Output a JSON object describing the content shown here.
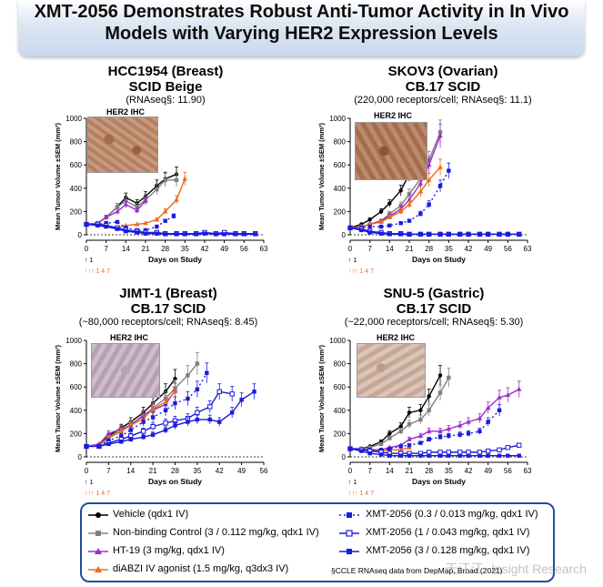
{
  "header": {
    "line1": "XMT-2056 Demonstrates Robust Anti-Tumor Activity in In Vivo",
    "line2": "Models with Varying HER2 Expression Levels"
  },
  "colors": {
    "vehicle": "#000000",
    "nonbinding": "#808080",
    "ht19": "#9b30c8",
    "diabzi": "#ee6a1a",
    "xmt": "#1a1ae0",
    "legend_border": "#1f4e9b"
  },
  "ihc_label": "HER2 IHC",
  "panels": [
    {
      "title": "HCC1954 (Breast)",
      "subtitle": "SCID Beige",
      "detail": "(RNAseq§: 11.90)"
    },
    {
      "title": "SKOV3 (Ovarian)",
      "subtitle": "CB.17 SCID",
      "detail": "(220,000 receptors/cell; RNAseq§: 11.1)"
    },
    {
      "title": "JIMT-1 (Breast)",
      "subtitle": "CB.17 SCID",
      "detail": "(~80,000 receptors/cell; RNAseq§: 8.45)"
    },
    {
      "title": "SNU-5 (Gastric)",
      "subtitle": "CB.17 SCID",
      "detail": "(~22,000 receptors/cell; RNAseq§: 5.30)"
    }
  ],
  "legend": {
    "items": [
      {
        "label": "Vehicle (qdx1 IV)",
        "series": "vehicle"
      },
      {
        "label": "Non-binding Control (3 / 0.112 mg/kg, qdx1 IV)",
        "series": "nonbinding"
      },
      {
        "label": "HT-19 (3 mg/kg, qdx1 IV)",
        "series": "ht19"
      },
      {
        "label": "diABZI IV agonist (1.5 mg/kg, q3dx3 IV)",
        "series": "diabzi"
      },
      {
        "label": "XMT-2056 (0.3 / 0.013 mg/kg, qdx1 IV)",
        "series": "xmt_low"
      },
      {
        "label": "XMT-2056 (1 / 0.043 mg/kg, qdx1 IV)",
        "series": "xmt_mid"
      },
      {
        "label": "XMT-2056 (3 / 0.128 mg/kg, qdx1 IV)",
        "series": "xmt_high"
      }
    ],
    "footnote": "§CCLE RNAseq data from DepMap, Broad (2021)"
  },
  "watermark": "天江江· Insight Research",
  "chart_data": [
    {
      "type": "line",
      "title": "HCC1954 (Breast)",
      "xlabel": "Days on Study",
      "ylabel": "Mean Tumor Volume ±SEM (mm³)",
      "xlim": [
        0,
        63
      ],
      "ylim": [
        0,
        1000
      ],
      "xticks": [
        0,
        7,
        14,
        21,
        28,
        35,
        42,
        49,
        56,
        63
      ],
      "yticks": [
        0,
        200,
        400,
        600,
        800,
        1000
      ],
      "dosing_markers": [
        "↑ 1",
        "↑↑↑ 1 4 7"
      ],
      "series": [
        {
          "name": "Vehicle",
          "key": "vehicle",
          "x": [
            0,
            4,
            7,
            11,
            14,
            18,
            21,
            25,
            28,
            32
          ],
          "y": [
            90,
            100,
            150,
            240,
            320,
            270,
            330,
            420,
            480,
            520
          ]
        },
        {
          "name": "Non-binding Control",
          "key": "nonbinding",
          "x": [
            0,
            4,
            7,
            11,
            14,
            18,
            21,
            25,
            28,
            32
          ],
          "y": [
            90,
            100,
            150,
            240,
            290,
            240,
            300,
            390,
            470,
            470
          ]
        },
        {
          "name": "HT-19",
          "key": "ht19",
          "x": [
            0,
            4,
            7,
            11,
            14,
            18,
            21
          ],
          "y": [
            90,
            100,
            150,
            200,
            260,
            210,
            290
          ]
        },
        {
          "name": "diABZI IV agonist",
          "key": "diabzi",
          "x": [
            0,
            4,
            7,
            11,
            14,
            18,
            21,
            25,
            28,
            32,
            35
          ],
          "y": [
            90,
            100,
            80,
            60,
            80,
            90,
            100,
            130,
            200,
            300,
            480
          ]
        },
        {
          "name": "XMT-2056 (0.3)",
          "key": "xmt_low",
          "x": [
            0,
            4,
            7,
            11,
            14,
            18,
            21,
            25,
            28,
            31
          ],
          "y": [
            90,
            90,
            100,
            110,
            60,
            40,
            40,
            70,
            120,
            160
          ]
        },
        {
          "name": "XMT-2056 (1)",
          "key": "xmt_mid",
          "x": [
            0,
            4,
            7,
            11,
            14,
            18,
            21,
            25,
            28,
            32,
            35,
            39,
            42,
            46,
            49,
            53,
            56,
            60
          ],
          "y": [
            90,
            90,
            80,
            60,
            40,
            30,
            20,
            20,
            10,
            10,
            10,
            10,
            20,
            10,
            20,
            10,
            10,
            10
          ]
        },
        {
          "name": "XMT-2056 (3)",
          "key": "xmt_high",
          "x": [
            0,
            4,
            7,
            11,
            14,
            18,
            21,
            25,
            28,
            32,
            35,
            39,
            42,
            46,
            49,
            53,
            56,
            60
          ],
          "y": [
            90,
            80,
            70,
            50,
            30,
            20,
            10,
            10,
            5,
            5,
            5,
            5,
            10,
            5,
            5,
            5,
            5,
            5
          ]
        }
      ]
    },
    {
      "type": "line",
      "title": "SKOV3 (Ovarian)",
      "xlabel": "Days on Study",
      "ylabel": "Mean Tumor Volume ±SEM (mm³)",
      "xlim": [
        0,
        63
      ],
      "ylim": [
        0,
        1000
      ],
      "xticks": [
        0,
        7,
        14,
        21,
        28,
        35,
        42,
        49,
        56,
        63
      ],
      "yticks": [
        0,
        200,
        400,
        600,
        800,
        1000
      ],
      "dosing_markers": [
        "↑ 1",
        "↑↑↑ 1 4 7"
      ],
      "series": [
        {
          "name": "Vehicle",
          "key": "vehicle",
          "x": [
            0,
            4,
            7,
            11,
            14,
            18,
            21,
            25
          ],
          "y": [
            60,
            90,
            130,
            200,
            270,
            380,
            520,
            760
          ]
        },
        {
          "name": "Non-binding Control",
          "key": "nonbinding",
          "x": [
            0,
            4,
            7,
            11,
            14,
            18,
            21,
            25,
            28,
            32
          ],
          "y": [
            60,
            70,
            90,
            120,
            180,
            250,
            350,
            480,
            640,
            880
          ]
        },
        {
          "name": "HT-19",
          "key": "ht19",
          "x": [
            0,
            4,
            7,
            11,
            14,
            18,
            21,
            25,
            28,
            32
          ],
          "y": [
            60,
            70,
            90,
            120,
            160,
            220,
            300,
            440,
            600,
            850
          ]
        },
        {
          "name": "diABZI IV agonist",
          "key": "diabzi",
          "x": [
            0,
            4,
            7,
            11,
            14,
            18,
            21,
            25,
            28,
            32
          ],
          "y": [
            60,
            70,
            90,
            110,
            150,
            200,
            260,
            370,
            470,
            580
          ]
        },
        {
          "name": "XMT-2056 (0.3)",
          "key": "xmt_low",
          "x": [
            0,
            4,
            7,
            11,
            14,
            18,
            21,
            25,
            28,
            32,
            35
          ],
          "y": [
            60,
            60,
            70,
            70,
            80,
            100,
            120,
            180,
            260,
            420,
            550
          ]
        },
        {
          "name": "XMT-2056 (1)",
          "key": "xmt_mid",
          "x": [
            0,
            4,
            7,
            11,
            14,
            18,
            21,
            25,
            28,
            32,
            35,
            39,
            42,
            46,
            49,
            53,
            56,
            60
          ],
          "y": [
            60,
            50,
            30,
            20,
            10,
            10,
            5,
            5,
            5,
            5,
            5,
            5,
            5,
            5,
            5,
            5,
            5,
            5
          ]
        },
        {
          "name": "XMT-2056 (3)",
          "key": "xmt_high",
          "x": [
            0,
            4,
            7,
            11,
            14,
            18,
            21,
            25,
            28,
            32,
            35,
            39,
            42,
            46,
            49,
            53,
            56,
            60
          ],
          "y": [
            60,
            40,
            20,
            10,
            5,
            5,
            5,
            5,
            5,
            5,
            5,
            5,
            5,
            5,
            5,
            5,
            5,
            5
          ]
        }
      ]
    },
    {
      "type": "line",
      "title": "JIMT-1 (Breast)",
      "xlabel": "Days on Study",
      "ylabel": "Mean Tumor Volume ±SEM (mm³)",
      "xlim": [
        0,
        56
      ],
      "ylim": [
        0,
        1000
      ],
      "xticks": [
        0,
        7,
        14,
        21,
        28,
        35,
        42,
        49,
        56
      ],
      "yticks": [
        0,
        200,
        400,
        600,
        800,
        1000
      ],
      "dosing_markers": [
        "↑ 1",
        "↑↑↑ 1 4 7"
      ],
      "series": [
        {
          "name": "Vehicle",
          "key": "vehicle",
          "x": [
            0,
            4,
            7,
            11,
            14,
            18,
            21,
            25,
            28
          ],
          "y": [
            90,
            100,
            180,
            250,
            300,
            380,
            460,
            560,
            670
          ]
        },
        {
          "name": "Non-binding Control",
          "key": "nonbinding",
          "x": [
            0,
            4,
            7,
            11,
            14,
            18,
            21,
            25,
            28,
            32,
            35
          ],
          "y": [
            90,
            100,
            170,
            230,
            280,
            350,
            420,
            500,
            590,
            700,
            800
          ]
        },
        {
          "name": "HT-19",
          "key": "ht19",
          "x": [
            0,
            4,
            7,
            11,
            14,
            18,
            21,
            25,
            28
          ],
          "y": [
            90,
            110,
            200,
            240,
            270,
            360,
            400,
            450,
            570
          ]
        },
        {
          "name": "diABZI IV agonist",
          "key": "diabzi",
          "x": [
            0,
            4,
            7,
            11,
            14,
            18,
            21,
            25,
            28
          ],
          "y": [
            90,
            100,
            160,
            220,
            270,
            330,
            410,
            470,
            560
          ]
        },
        {
          "name": "XMT-2056 (0.3)",
          "key": "xmt_low",
          "x": [
            0,
            4,
            7,
            11,
            14,
            18,
            21,
            25,
            28,
            32,
            35,
            38
          ],
          "y": [
            90,
            90,
            140,
            180,
            230,
            300,
            340,
            400,
            460,
            500,
            580,
            720
          ]
        },
        {
          "name": "XMT-2056 (1)",
          "key": "xmt_mid",
          "x": [
            0,
            4,
            7,
            11,
            14,
            18,
            21,
            25,
            28,
            32,
            35,
            39,
            42,
            46
          ],
          "y": [
            90,
            90,
            120,
            150,
            180,
            220,
            260,
            290,
            310,
            330,
            380,
            430,
            560,
            540
          ]
        },
        {
          "name": "XMT-2056 (3)",
          "key": "xmt_high",
          "x": [
            0,
            4,
            7,
            11,
            14,
            18,
            21,
            25,
            28,
            32,
            35,
            39,
            42,
            46,
            49,
            53
          ],
          "y": [
            90,
            90,
            110,
            130,
            150,
            170,
            190,
            230,
            270,
            300,
            320,
            320,
            300,
            380,
            490,
            560
          ]
        }
      ]
    },
    {
      "type": "line",
      "title": "SNU-5 (Gastric)",
      "xlabel": "Days on Study",
      "ylabel": "Mean Tumor Volume ±SEM (mm³)",
      "xlim": [
        0,
        63
      ],
      "ylim": [
        0,
        1000
      ],
      "xticks": [
        0,
        7,
        14,
        21,
        28,
        35,
        42,
        49,
        56,
        63
      ],
      "yticks": [
        0,
        200,
        400,
        600,
        800,
        1000
      ],
      "dosing_markers": [
        "↑ 1",
        "↑↑↑ 1 4 7"
      ],
      "series": [
        {
          "name": "Vehicle",
          "key": "vehicle",
          "x": [
            0,
            4,
            7,
            11,
            14,
            18,
            21,
            25,
            28,
            32
          ],
          "y": [
            70,
            70,
            90,
            130,
            200,
            260,
            380,
            400,
            520,
            700
          ]
        },
        {
          "name": "Non-binding Control",
          "key": "nonbinding",
          "x": [
            0,
            4,
            7,
            11,
            14,
            18,
            21,
            25,
            28,
            32,
            35
          ],
          "y": [
            70,
            70,
            80,
            110,
            160,
            220,
            280,
            320,
            400,
            550,
            680
          ]
        },
        {
          "name": "HT-19",
          "key": "ht19",
          "x": [
            0,
            4,
            7,
            11,
            14,
            18,
            21,
            25,
            28,
            32,
            35,
            39,
            42,
            46,
            49,
            53,
            56,
            60
          ],
          "y": [
            70,
            70,
            60,
            60,
            80,
            100,
            150,
            180,
            220,
            220,
            240,
            270,
            300,
            330,
            420,
            510,
            530,
            580
          ]
        },
        {
          "name": "diABZI IV agonist",
          "key": "diabzi",
          "x": [
            0,
            4,
            7,
            11,
            14,
            18,
            21
          ],
          "y": [
            70,
            60,
            50,
            50,
            60,
            60,
            80
          ]
        },
        {
          "name": "XMT-2056 (0.3)",
          "key": "xmt_low",
          "x": [
            0,
            4,
            7,
            11,
            14,
            18,
            21,
            25,
            28,
            32,
            35,
            39,
            42,
            46,
            49,
            53
          ],
          "y": [
            70,
            60,
            60,
            60,
            70,
            90,
            100,
            120,
            150,
            170,
            180,
            190,
            200,
            220,
            300,
            400
          ]
        },
        {
          "name": "XMT-2056 (1)",
          "key": "xmt_mid",
          "x": [
            0,
            4,
            7,
            11,
            14,
            18,
            21,
            25,
            28,
            32,
            35,
            39,
            42,
            46,
            49,
            53,
            56,
            60
          ],
          "y": [
            70,
            60,
            50,
            40,
            30,
            30,
            30,
            30,
            40,
            40,
            40,
            40,
            40,
            40,
            50,
            60,
            80,
            100
          ]
        },
        {
          "name": "XMT-2056 (3)",
          "key": "xmt_high",
          "x": [
            0,
            4,
            7,
            11,
            14,
            18,
            21,
            25,
            28,
            32,
            35,
            39,
            42,
            46,
            49,
            53,
            56,
            60
          ],
          "y": [
            70,
            50,
            30,
            20,
            10,
            10,
            10,
            10,
            10,
            10,
            10,
            10,
            10,
            10,
            10,
            10,
            10,
            10
          ]
        }
      ]
    }
  ]
}
